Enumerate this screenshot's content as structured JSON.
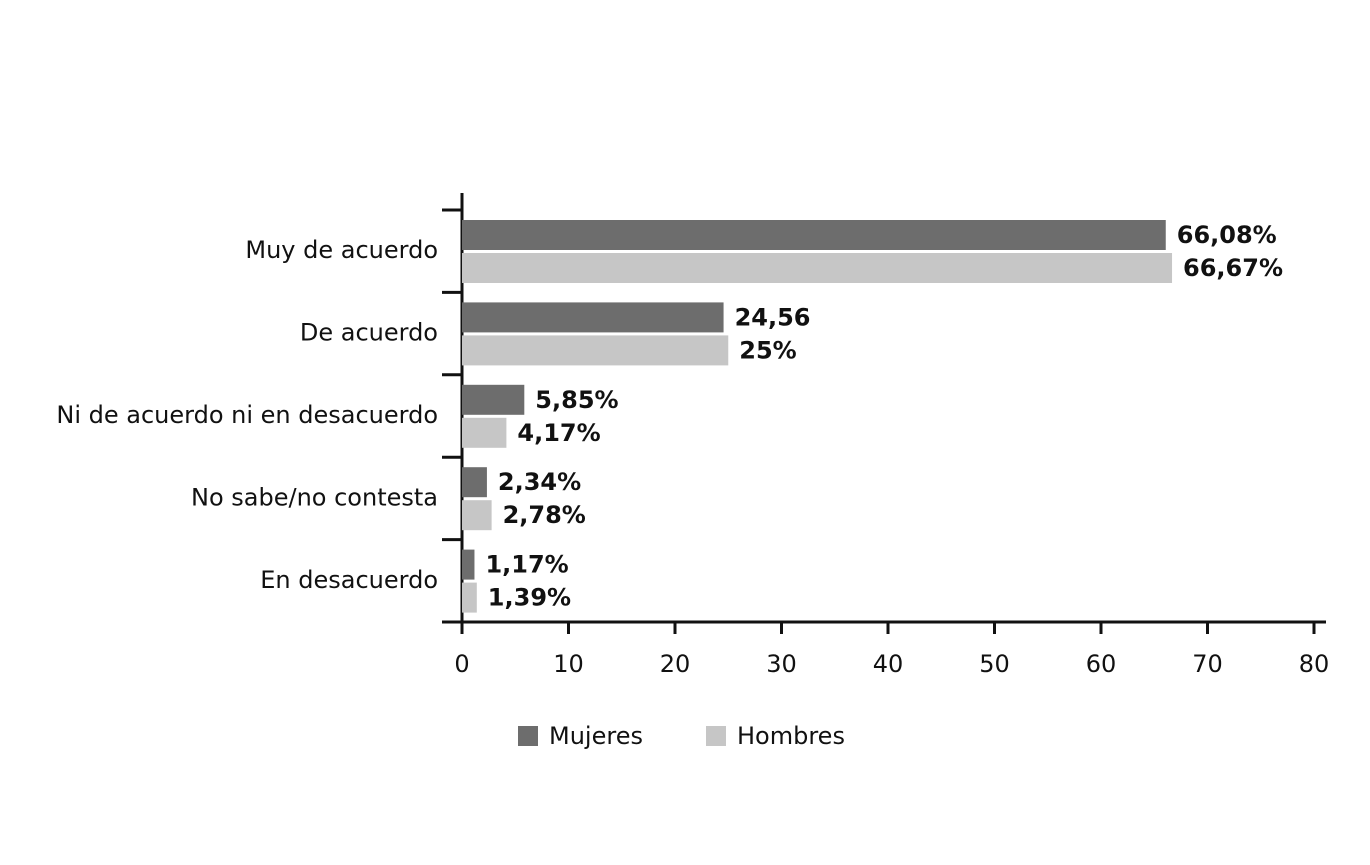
{
  "chart_data": {
    "type": "bar",
    "orientation": "horizontal",
    "categories": [
      "Muy de acuerdo",
      "De acuerdo",
      "Ni de acuerdo ni en desacuerdo",
      "No sabe/no contesta",
      "En desacuerdo"
    ],
    "series": [
      {
        "name": "Mujeres",
        "color": "#6d6d6d",
        "values": [
          66.08,
          24.56,
          5.85,
          2.34,
          1.17
        ],
        "value_labels": [
          "66,08%",
          "24,56",
          "5,85%",
          "2,34%",
          "1,17%"
        ]
      },
      {
        "name": "Hombres",
        "color": "#c6c6c6",
        "values": [
          66.67,
          25,
          4.17,
          2.78,
          1.39
        ],
        "value_labels": [
          "66,67%",
          "25%",
          "4,17%",
          "2,78%",
          "1,39%"
        ]
      }
    ],
    "xlim": [
      0,
      80
    ],
    "xticks": [
      0,
      10,
      20,
      30,
      40,
      50,
      60,
      70,
      80
    ],
    "legend": "bottom"
  }
}
